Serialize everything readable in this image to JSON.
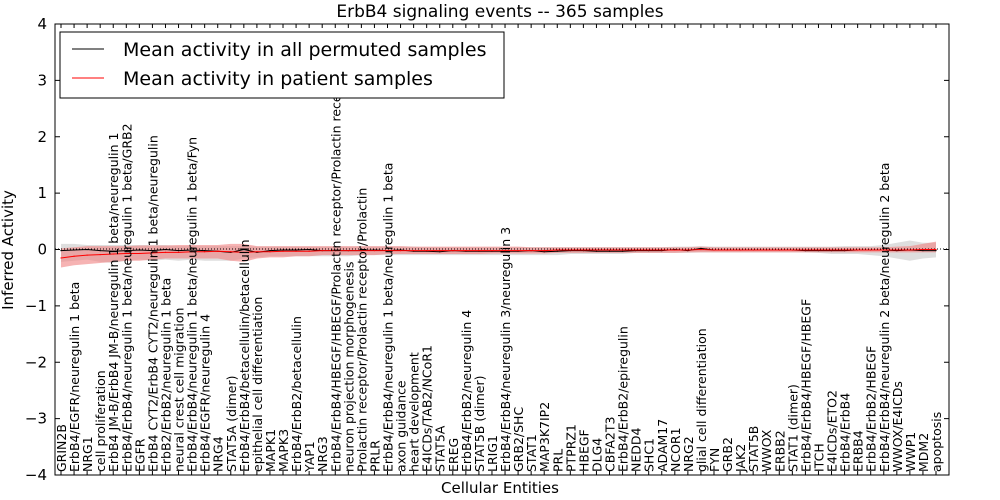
{
  "chart_data": {
    "type": "line",
    "title": "ErbB4 signaling events -- 365 samples",
    "xlabel": "Cellular Entities",
    "ylabel": "Inferred Activity",
    "ylim": [
      -4,
      4
    ],
    "yticks": [
      "4",
      "3",
      "2",
      "1",
      "0",
      "−1",
      "−2",
      "−3",
      "−4"
    ],
    "grid": false,
    "legend_position": "top-left",
    "colors": {
      "permuted": "#000000",
      "patient": "#ff0000",
      "patient_band": "#f08080",
      "permuted_band": "#c8c8c8"
    },
    "categories": [
      "GRIN2B",
      "ErbB4/EGFR/neuregulin 1 beta",
      "NRG1",
      "cell proliferation",
      "ErbB4 JM-B/ErbB4 JM-B/neuregulin 1 beta/neuregulin 1",
      "ErbB4/ErbB4/neuregulin 1 beta/neuregulin 1 beta/GRB2",
      "EGFR",
      "ErbB4 CYT2/ErbB4 CYT2/neuregulin 1 beta/neuregulin",
      "ErbB2/ErbB2/neuregulin 1 beta",
      "neural crest cell migration",
      "ErbB4/ErbB4/neuregulin 1 beta/neuregulin 1 beta/Fyn",
      "ErbB4/EGFR/neuregulin 4",
      "NRG4",
      "STAT5A (dimer)",
      "ErbB4/ErbB4/betacellulin/betacellulin",
      "epithelial cell differentiation",
      "MAPK1",
      "MAPK3",
      "ErbB4/ErbB2/betacellulin",
      "YAP1",
      "NRG3",
      "ErbB4/ErbB4/HBEGF/HBEGF/Prolactin receptor/Prolactin receptor",
      "neuron projection morphogenesis",
      "Prolactin receptor/Prolactin receptor/Prolactin",
      "PRLR",
      "ErbB4/ErbB4/neuregulin 1 beta/neuregulin 1 beta",
      "axon guidance",
      "heart development",
      "E4ICDs/TAB2/NCoR1",
      "STAT5A",
      "EREG",
      "ErbB4/ErbB2/neuregulin 4",
      "STAT5B (dimer)",
      "LRIG1",
      "ErbB4/ErbB4/neuregulin 3/neuregulin 3",
      "GRB2/SHC",
      "STAT1",
      "MAP3K7IP2",
      "PRL",
      "PTPRZ1",
      "HBEGF",
      "DLG4",
      "CBFA2T3",
      "ErbB4/ErbB2/epiregulin",
      "NEDD4",
      "SHC1",
      "ADAM17",
      "NCOR1",
      "NRG2",
      "glial cell differentiation",
      "FYN",
      "GRB2",
      "JAK2",
      "STAT5B",
      "WWOX",
      "ERBB2",
      "STAT1 (dimer)",
      "ErbB4/ErbB4/HBEGF/HBEGF",
      "ITCH",
      "E4ICDs/ETO2",
      "ErbB4/ErbB4",
      "ERBB4",
      "ErbB4/ErbB2/HBEGF",
      "ErbB4/ErbB4/neuregulin 2 beta/neuregulin 2 beta",
      "WWOX/E4ICDs",
      "WWP1",
      "MDM2",
      "apoptosis"
    ],
    "series": [
      {
        "name": "Mean activity in all permuted samples",
        "values": [
          -0.02,
          -0.01,
          0.0,
          -0.02,
          -0.03,
          -0.02,
          -0.01,
          -0.02,
          0.0,
          -0.02,
          -0.01,
          -0.02,
          -0.03,
          -0.05,
          0.0,
          -0.05,
          -0.02,
          -0.01,
          -0.01,
          0.0,
          -0.02,
          -0.02,
          -0.02,
          -0.02,
          -0.01,
          -0.02,
          -0.01,
          -0.03,
          -0.03,
          -0.04,
          -0.02,
          -0.03,
          -0.03,
          -0.03,
          -0.03,
          -0.03,
          -0.02,
          -0.04,
          -0.03,
          -0.02,
          -0.02,
          -0.03,
          -0.03,
          -0.03,
          -0.02,
          -0.02,
          -0.02,
          0.0,
          -0.02,
          0.02,
          -0.01,
          -0.01,
          -0.01,
          -0.01,
          -0.01,
          -0.01,
          -0.01,
          -0.02,
          -0.02,
          -0.02,
          -0.02,
          -0.01,
          -0.01,
          -0.01,
          -0.02,
          -0.01,
          -0.02,
          -0.02
        ],
        "lower": [
          -0.22,
          -0.2,
          -0.18,
          -0.22,
          -0.24,
          -0.2,
          -0.18,
          -0.2,
          -0.18,
          -0.2,
          -0.18,
          -0.2,
          -0.2,
          -0.2,
          -0.16,
          -0.14,
          -0.12,
          -0.12,
          -0.12,
          -0.12,
          -0.12,
          -0.12,
          -0.12,
          -0.1,
          -0.1,
          -0.1,
          -0.1,
          -0.1,
          -0.1,
          -0.1,
          -0.1,
          -0.1,
          -0.1,
          -0.1,
          -0.1,
          -0.1,
          -0.1,
          -0.1,
          -0.1,
          -0.08,
          -0.08,
          -0.08,
          -0.08,
          -0.08,
          -0.06,
          -0.06,
          -0.06,
          -0.06,
          -0.06,
          -0.05,
          -0.05,
          -0.05,
          -0.05,
          -0.05,
          -0.05,
          -0.05,
          -0.05,
          -0.05,
          -0.06,
          -0.08,
          -0.08,
          -0.08,
          -0.1,
          -0.12,
          -0.16,
          -0.2,
          -0.16,
          -0.14
        ],
        "upper": [
          0.1,
          0.1,
          0.08,
          0.08,
          0.08,
          0.08,
          0.08,
          0.08,
          0.08,
          0.06,
          0.06,
          0.06,
          0.06,
          0.06,
          0.06,
          0.05,
          0.05,
          0.05,
          0.05,
          0.05,
          0.05,
          0.05,
          0.05,
          0.05,
          0.05,
          0.05,
          0.05,
          0.05,
          0.04,
          0.04,
          0.04,
          0.04,
          0.04,
          0.04,
          0.04,
          0.04,
          0.04,
          0.04,
          0.04,
          0.04,
          0.04,
          0.04,
          0.04,
          0.04,
          0.04,
          0.04,
          0.04,
          0.05,
          0.05,
          0.06,
          0.05,
          0.05,
          0.05,
          0.05,
          0.05,
          0.05,
          0.05,
          0.05,
          0.05,
          0.05,
          0.06,
          0.06,
          0.06,
          0.08,
          0.12,
          0.16,
          0.12,
          0.12
        ]
      },
      {
        "name": "Mean activity in patient samples",
        "values": [
          -0.15,
          -0.12,
          -0.1,
          -0.09,
          -0.08,
          -0.07,
          -0.07,
          -0.06,
          -0.05,
          -0.05,
          -0.04,
          -0.04,
          -0.03,
          -0.04,
          -0.05,
          -0.04,
          -0.04,
          -0.03,
          -0.03,
          -0.03,
          -0.02,
          -0.02,
          -0.02,
          -0.02,
          -0.02,
          -0.02,
          -0.02,
          -0.02,
          -0.02,
          -0.02,
          -0.02,
          -0.02,
          -0.02,
          -0.02,
          -0.02,
          -0.02,
          -0.02,
          -0.02,
          -0.01,
          -0.01,
          -0.01,
          -0.01,
          -0.01,
          -0.01,
          -0.01,
          -0.01,
          -0.01,
          -0.01,
          -0.01,
          0.0,
          -0.01,
          -0.01,
          -0.01,
          -0.01,
          -0.01,
          -0.01,
          -0.01,
          -0.01,
          -0.01,
          -0.01,
          -0.01,
          -0.01,
          -0.01,
          -0.01,
          -0.01,
          -0.01,
          0.0,
          0.0
        ],
        "lower": [
          -0.32,
          -0.28,
          -0.26,
          -0.24,
          -0.22,
          -0.2,
          -0.2,
          -0.18,
          -0.16,
          -0.16,
          -0.16,
          -0.16,
          -0.16,
          -0.2,
          -0.22,
          -0.16,
          -0.14,
          -0.14,
          -0.12,
          -0.12,
          -0.1,
          -0.1,
          -0.1,
          -0.1,
          -0.1,
          -0.08,
          -0.08,
          -0.08,
          -0.08,
          -0.08,
          -0.08,
          -0.08,
          -0.08,
          -0.07,
          -0.07,
          -0.07,
          -0.07,
          -0.07,
          -0.06,
          -0.06,
          -0.06,
          -0.06,
          -0.06,
          -0.06,
          -0.06,
          -0.06,
          -0.06,
          -0.06,
          -0.05,
          -0.05,
          -0.05,
          -0.05,
          -0.05,
          -0.05,
          -0.05,
          -0.05,
          -0.05,
          -0.05,
          -0.05,
          -0.05,
          -0.05,
          -0.05,
          -0.05,
          -0.05,
          -0.05,
          -0.05,
          -0.05,
          -0.05
        ],
        "upper": [
          0.02,
          0.04,
          0.06,
          0.06,
          0.06,
          0.06,
          0.07,
          0.07,
          0.07,
          0.08,
          0.08,
          0.08,
          0.08,
          0.1,
          0.1,
          0.06,
          0.06,
          0.06,
          0.06,
          0.06,
          0.06,
          0.06,
          0.06,
          0.06,
          0.06,
          0.06,
          0.06,
          0.05,
          0.05,
          0.05,
          0.05,
          0.05,
          0.05,
          0.05,
          0.05,
          0.05,
          0.04,
          0.04,
          0.04,
          0.04,
          0.04,
          0.04,
          0.04,
          0.04,
          0.04,
          0.04,
          0.04,
          0.04,
          0.04,
          0.05,
          0.04,
          0.04,
          0.04,
          0.04,
          0.04,
          0.04,
          0.04,
          0.04,
          0.04,
          0.04,
          0.04,
          0.04,
          0.04,
          0.04,
          0.05,
          0.06,
          0.1,
          0.14
        ]
      }
    ]
  }
}
